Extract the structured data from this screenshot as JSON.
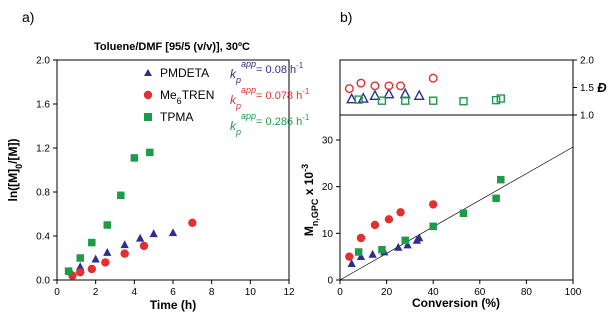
{
  "chart_data": [
    {
      "type": "scatter",
      "panel_label": "a)",
      "title": "Toluene/DMF [95/5 (v/v)], 30ºC",
      "xlabel": "Time (h)",
      "ylabel": "ln([M]0/[M])",
      "xlim": [
        0,
        12
      ],
      "ylim": [
        0,
        2.0
      ],
      "xticks": [
        "0",
        "2",
        "4",
        "6",
        "8",
        "10",
        "12"
      ],
      "yticks": [
        "0.0",
        "0.4",
        "0.8",
        "1.2",
        "1.6",
        "2.0"
      ],
      "legend": "top-right",
      "series": [
        {
          "name": "PMDETA",
          "name_sub": "",
          "name_after": "",
          "marker": "triangle",
          "color": "#2e2e8c",
          "kp_prefix": "k",
          "kp_sub": "p",
          "kp_sup": "app",
          "kp_value": "= 0.08 h",
          "kp_exp": "-1",
          "x": [
            0.7,
            1.2,
            2.0,
            2.6,
            3.5,
            4.3,
            5.0,
            6.0
          ],
          "y": [
            0.08,
            0.12,
            0.19,
            0.25,
            0.32,
            0.38,
            0.42,
            0.43
          ]
        },
        {
          "name": "Me",
          "name_sub": "6",
          "name_after": "TREN",
          "marker": "circle",
          "color": "#e03030",
          "kp_prefix": "k",
          "kp_sub": "p",
          "kp_sup": "app",
          "kp_value": "= 0.078 h",
          "kp_exp": "-1",
          "x": [
            0.8,
            1.2,
            1.8,
            2.5,
            3.5,
            4.5,
            7.0
          ],
          "y": [
            0.04,
            0.07,
            0.1,
            0.16,
            0.24,
            0.31,
            0.52
          ]
        },
        {
          "name": "TPMA",
          "name_sub": "",
          "name_after": "",
          "marker": "square",
          "color": "#1e9a4a",
          "kp_prefix": "k",
          "kp_sub": "p",
          "kp_sup": "app",
          "kp_value": "= 0.286 h",
          "kp_exp": "-1",
          "x": [
            0.6,
            1.2,
            1.8,
            2.6,
            3.3,
            4.0,
            4.8
          ],
          "y": [
            0.08,
            0.2,
            0.34,
            0.5,
            0.77,
            1.11,
            1.16
          ]
        }
      ]
    },
    {
      "type": "scatter",
      "panel_label": "b)",
      "xlabel": "Conversion (%)",
      "ylabel": "Mn,GPC x 10-3",
      "ylabel_main": "M",
      "ylabel_sub": "n,GPC",
      "ylabel_mid": " x 10",
      "ylabel_sup": "-3",
      "xlim": [
        0,
        100
      ],
      "ylim": [
        0,
        30
      ],
      "xticks": [
        "0",
        "20",
        "40",
        "60",
        "80",
        "100"
      ],
      "yticks": [
        "0",
        "10",
        "20",
        "30"
      ],
      "reference_line": {
        "x": [
          0,
          100
        ],
        "y": [
          0,
          28.5
        ],
        "style": "thin"
      },
      "dispersity_axis": {
        "label": "Đ",
        "range": [
          1.0,
          2.0
        ],
        "ticks": [
          "1.0",
          "1.5",
          "2.0"
        ]
      },
      "series": [
        {
          "name": "PMDETA",
          "marker": "triangle",
          "color": "#2e2e8c",
          "x": [
            5,
            9,
            14,
            19,
            25,
            29,
            33,
            34
          ],
          "y": [
            3.5,
            5.0,
            5.5,
            6.0,
            7.0,
            7.5,
            8.5,
            9.0
          ],
          "dispersity_x": [
            5,
            10,
            15,
            21,
            28,
            34
          ],
          "dispersity": [
            1.29,
            1.3,
            1.35,
            1.38,
            1.38,
            1.35
          ]
        },
        {
          "name": "Me6TREN",
          "marker": "circle",
          "color": "#e03030",
          "x": [
            4,
            9,
            15,
            21,
            26,
            40
          ],
          "y": [
            5.0,
            9.0,
            11.8,
            13.0,
            14.5,
            16.2
          ],
          "dispersity_x": [
            4,
            9,
            15,
            21,
            26,
            40
          ],
          "dispersity": [
            1.48,
            1.58,
            1.53,
            1.53,
            1.53,
            1.67
          ]
        },
        {
          "name": "TPMA",
          "marker": "square",
          "color": "#1e9a4a",
          "x": [
            8,
            18,
            28,
            40,
            53,
            67,
            69
          ],
          "y": [
            6.0,
            6.5,
            8.5,
            11.5,
            14.3,
            17.5,
            21.5
          ],
          "dispersity_x": [
            8,
            18,
            28,
            40,
            53,
            67,
            69
          ],
          "dispersity": [
            1.28,
            1.26,
            1.26,
            1.26,
            1.25,
            1.27,
            1.3
          ]
        }
      ]
    }
  ]
}
